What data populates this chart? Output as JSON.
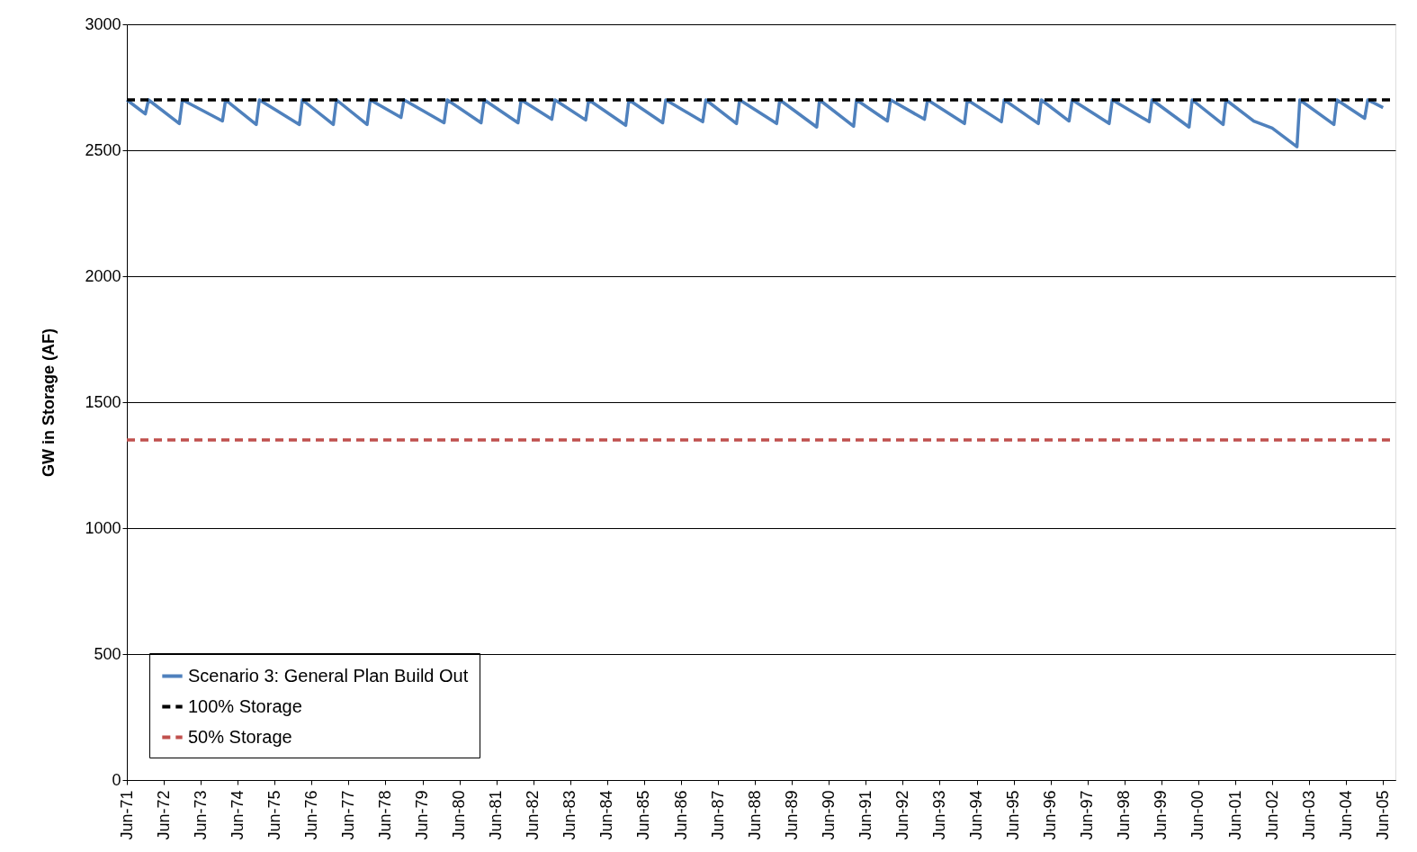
{
  "chart_data": {
    "type": "line",
    "ylabel": "GW in Storage (AF)",
    "xlim": [
      "1971-06",
      "2005-10"
    ],
    "ylim": [
      0,
      3000
    ],
    "yticks": [
      0,
      500,
      1000,
      1500,
      2000,
      2500,
      3000
    ],
    "xticks": [
      {
        "value": "1971-06",
        "label": "Jun-71"
      },
      {
        "value": "1972-06",
        "label": "Jun-72"
      },
      {
        "value": "1973-06",
        "label": "Jun-73"
      },
      {
        "value": "1974-06",
        "label": "Jun-74"
      },
      {
        "value": "1975-06",
        "label": "Jun-75"
      },
      {
        "value": "1976-06",
        "label": "Jun-76"
      },
      {
        "value": "1977-06",
        "label": "Jun-77"
      },
      {
        "value": "1978-06",
        "label": "Jun-78"
      },
      {
        "value": "1979-06",
        "label": "Jun-79"
      },
      {
        "value": "1980-06",
        "label": "Jun-80"
      },
      {
        "value": "1981-06",
        "label": "Jun-81"
      },
      {
        "value": "1982-06",
        "label": "Jun-82"
      },
      {
        "value": "1983-06",
        "label": "Jun-83"
      },
      {
        "value": "1984-06",
        "label": "Jun-84"
      },
      {
        "value": "1985-06",
        "label": "Jun-85"
      },
      {
        "value": "1986-06",
        "label": "Jun-86"
      },
      {
        "value": "1987-06",
        "label": "Jun-87"
      },
      {
        "value": "1988-06",
        "label": "Jun-88"
      },
      {
        "value": "1989-06",
        "label": "Jun-89"
      },
      {
        "value": "1990-06",
        "label": "Jun-90"
      },
      {
        "value": "1991-06",
        "label": "Jun-91"
      },
      {
        "value": "1992-06",
        "label": "Jun-92"
      },
      {
        "value": "1993-06",
        "label": "Jun-93"
      },
      {
        "value": "1994-06",
        "label": "Jun-94"
      },
      {
        "value": "1995-06",
        "label": "Jun-95"
      },
      {
        "value": "1996-06",
        "label": "Jun-96"
      },
      {
        "value": "1997-06",
        "label": "Jun-97"
      },
      {
        "value": "1998-06",
        "label": "Jun-98"
      },
      {
        "value": "1999-06",
        "label": "Jun-99"
      },
      {
        "value": "2000-06",
        "label": "Jun-00"
      },
      {
        "value": "2001-06",
        "label": "Jun-01"
      },
      {
        "value": "2002-06",
        "label": "Jun-02"
      },
      {
        "value": "2003-06",
        "label": "Jun-03"
      },
      {
        "value": "2004-06",
        "label": "Jun-04"
      },
      {
        "value": "2005-06",
        "label": "Jun-05"
      }
    ],
    "grid": "y",
    "legend": "bottom left",
    "marker": "none",
    "series": [
      {
        "name": "Scenario 3: General Plan Build Out",
        "color": "#4f81bd",
        "line_style": "solid",
        "x": [
          "1971-06",
          "1971-12",
          "1972-01",
          "1972-11",
          "1972-12",
          "1974-01",
          "1974-02",
          "1974-12",
          "1975-01",
          "1976-02",
          "1976-03",
          "1977-01",
          "1977-02",
          "1977-12",
          "1978-01",
          "1978-11",
          "1978-12",
          "1980-01",
          "1980-02",
          "1981-01",
          "1981-02",
          "1982-01",
          "1982-02",
          "1982-12",
          "1983-01",
          "1983-11",
          "1983-12",
          "1984-12",
          "1985-01",
          "1985-12",
          "1986-01",
          "1987-01",
          "1987-02",
          "1987-12",
          "1988-01",
          "1989-01",
          "1989-02",
          "1990-02",
          "1990-03",
          "1991-02",
          "1991-03",
          "1992-01",
          "1992-02",
          "1993-01",
          "1993-02",
          "1994-02",
          "1994-03",
          "1995-02",
          "1995-03",
          "1996-02",
          "1996-03",
          "1996-12",
          "1997-01",
          "1998-01",
          "1998-02",
          "1999-02",
          "1999-03",
          "2000-03",
          "2000-04",
          "2001-02",
          "2001-03",
          "2001-12",
          "2002-06",
          "2003-02",
          "2003-03",
          "2004-02",
          "2004-03",
          "2004-12",
          "2005-01",
          "2005-06"
        ],
        "values": [
          2700,
          2644,
          2700,
          2606,
          2700,
          2616,
          2700,
          2602,
          2700,
          2602,
          2700,
          2602,
          2700,
          2602,
          2700,
          2630,
          2700,
          2609,
          2700,
          2609,
          2700,
          2609,
          2700,
          2623,
          2700,
          2620,
          2700,
          2599,
          2700,
          2609,
          2700,
          2613,
          2700,
          2606,
          2700,
          2606,
          2700,
          2592,
          2700,
          2595,
          2700,
          2616,
          2700,
          2623,
          2700,
          2606,
          2700,
          2613,
          2700,
          2606,
          2700,
          2616,
          2700,
          2606,
          2700,
          2613,
          2700,
          2592,
          2700,
          2602,
          2700,
          2616,
          2588,
          2514,
          2700,
          2602,
          2700,
          2627,
          2700,
          2669
        ]
      }
    ],
    "ref_lines": [
      {
        "axis": "y",
        "value": 2700,
        "label": "100% Storage",
        "color": "#000000",
        "line_style": "dashed"
      },
      {
        "axis": "y",
        "value": 1350,
        "label": "50% Storage",
        "color": "#c0504d",
        "line_style": "dashed"
      }
    ]
  }
}
